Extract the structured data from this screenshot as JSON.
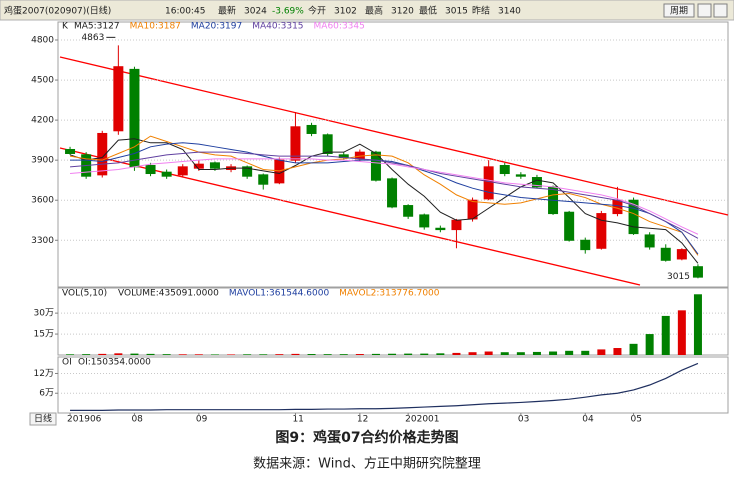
{
  "header": {
    "symbol": "鸡蛋2007(020907)(日线)",
    "time": "16:00:45",
    "fields": [
      {
        "label": "最新",
        "value": "3024"
      },
      {
        "label": "今开",
        "value": "3102"
      },
      {
        "label": "最高",
        "value": "3120"
      },
      {
        "label": "最低",
        "value": "3015"
      },
      {
        "label": "昨结",
        "value": "3140"
      }
    ],
    "change": "-3.69%",
    "button": "周期"
  },
  "chart_data": [
    {
      "type": "candlestick",
      "label": "K",
      "categories": [
        "201906",
        null,
        null,
        null,
        "08",
        null,
        null,
        null,
        "09",
        null,
        null,
        null,
        null,
        null,
        "11",
        null,
        null,
        null,
        "12",
        null,
        null,
        "202001",
        null,
        null,
        null,
        null,
        null,
        null,
        "03",
        null,
        null,
        null,
        "04",
        null,
        null,
        "05",
        null,
        null,
        null,
        null
      ],
      "open": [
        3980,
        3940,
        3790,
        4120,
        4580,
        3860,
        3810,
        3790,
        3840,
        3880,
        3830,
        3850,
        3790,
        3730,
        3900,
        4160,
        4090,
        3940,
        3910,
        3960,
        3760,
        3560,
        3490,
        3390,
        3380,
        3460,
        3610,
        3860,
        3790,
        3770,
        3700,
        3510,
        3300,
        3240,
        3500,
        3600,
        3340,
        3240,
        3160,
        3102
      ],
      "high": [
        4000,
        3960,
        4120,
        4760,
        4600,
        3880,
        3830,
        3870,
        3900,
        3890,
        3870,
        3860,
        3800,
        3920,
        4260,
        4180,
        4100,
        3960,
        3980,
        3970,
        3770,
        3570,
        3500,
        3410,
        3460,
        3620,
        3900,
        3880,
        3810,
        3790,
        3710,
        3520,
        3320,
        3520,
        3700,
        3620,
        3360,
        3270,
        3240,
        3120
      ],
      "low": [
        3940,
        3760,
        3770,
        4090,
        3820,
        3780,
        3760,
        3770,
        3820,
        3820,
        3810,
        3760,
        3680,
        3720,
        3880,
        4080,
        3930,
        3900,
        3890,
        3740,
        3540,
        3460,
        3380,
        3360,
        3240,
        3440,
        3600,
        3780,
        3760,
        3690,
        3490,
        3290,
        3200,
        3230,
        3480,
        3340,
        3230,
        3140,
        3150,
        3015
      ],
      "close": [
        3950,
        3780,
        4100,
        4600,
        3850,
        3800,
        3780,
        3850,
        3870,
        3840,
        3850,
        3780,
        3720,
        3900,
        4150,
        4100,
        3950,
        3920,
        3960,
        3750,
        3550,
        3480,
        3400,
        3380,
        3450,
        3600,
        3850,
        3800,
        3780,
        3700,
        3500,
        3300,
        3230,
        3500,
        3600,
        3350,
        3250,
        3150,
        3230,
        3024
      ],
      "up_color": "#e00000",
      "down_color": "#008000",
      "series": [
        {
          "name": "MA5:3127",
          "color": "#202020",
          "values": [
            3940,
            3900,
            3920,
            4050,
            4060,
            4030,
            4030,
            3980,
            3830,
            3830,
            3840,
            3840,
            3820,
            3800,
            3860,
            3930,
            3960,
            3960,
            4020,
            3950,
            3830,
            3720,
            3630,
            3510,
            3450,
            3460,
            3540,
            3620,
            3700,
            3750,
            3730,
            3620,
            3500,
            3450,
            3430,
            3400,
            3390,
            3380,
            3280,
            3127
          ]
        },
        {
          "name": "MA10:3187",
          "color": "#f08000",
          "values": [
            3930,
            3910,
            3900,
            3950,
            4000,
            4080,
            4040,
            4000,
            3960,
            3940,
            3930,
            3880,
            3830,
            3820,
            3850,
            3880,
            3900,
            3910,
            3930,
            3940,
            3930,
            3880,
            3790,
            3720,
            3640,
            3590,
            3580,
            3570,
            3580,
            3610,
            3640,
            3650,
            3620,
            3570,
            3540,
            3500,
            3440,
            3400,
            3360,
            3187
          ]
        },
        {
          "name": "MA20:3197",
          "color": "#2040a0",
          "values": [
            3900,
            3900,
            3890,
            3920,
            3950,
            4000,
            4020,
            4030,
            4020,
            4000,
            3980,
            3960,
            3930,
            3900,
            3880,
            3880,
            3880,
            3890,
            3900,
            3900,
            3890,
            3860,
            3820,
            3780,
            3730,
            3690,
            3660,
            3640,
            3620,
            3610,
            3600,
            3590,
            3580,
            3570,
            3560,
            3540,
            3500,
            3440,
            3360,
            3197
          ]
        },
        {
          "name": "MA40:3315",
          "color": "#6040a0",
          "values": [
            3850,
            3860,
            3870,
            3880,
            3900,
            3920,
            3940,
            3950,
            3960,
            3960,
            3960,
            3950,
            3940,
            3930,
            3930,
            3930,
            3930,
            3920,
            3910,
            3900,
            3880,
            3860,
            3830,
            3800,
            3780,
            3760,
            3740,
            3720,
            3700,
            3690,
            3680,
            3660,
            3640,
            3620,
            3600,
            3560,
            3500,
            3440,
            3380,
            3315
          ]
        },
        {
          "name": "MA60:3345",
          "color": "#f080f0",
          "values": [
            3800,
            3810,
            3820,
            3830,
            3850,
            3870,
            3880,
            3890,
            3900,
            3910,
            3910,
            3910,
            3910,
            3910,
            3910,
            3910,
            3900,
            3900,
            3890,
            3880,
            3870,
            3850,
            3830,
            3810,
            3790,
            3770,
            3750,
            3730,
            3720,
            3710,
            3700,
            3680,
            3660,
            3640,
            3610,
            3570,
            3520,
            3460,
            3400,
            3345
          ]
        }
      ],
      "annotations": [
        "4863",
        "3015"
      ],
      "ylim": [
        2950,
        4860
      ],
      "yticks": [
        3300,
        3600,
        3900,
        4200,
        4500,
        4800
      ],
      "grid": true
    },
    {
      "type": "bar",
      "title": "VOL(5,10)",
      "stats": [
        {
          "text": "VOLUME:435091.0000",
          "color": "#202020"
        },
        {
          "text": "MAVOL1:361544.6000",
          "color": "#2040a0"
        },
        {
          "text": "MAVOL2:313776.7000",
          "color": "#f08000"
        }
      ],
      "values": [
        0.5,
        0.6,
        0.8,
        1.2,
        1,
        0.8,
        0.6,
        0.5,
        0.5,
        0.4,
        0.4,
        0.5,
        0.5,
        0.6,
        0.8,
        0.7,
        0.6,
        0.6,
        0.7,
        0.8,
        0.9,
        1,
        1,
        1.2,
        1.5,
        2,
        2.5,
        2,
        2,
        2.2,
        2.5,
        3,
        3,
        4,
        5,
        8,
        15,
        28,
        32,
        43.5
      ],
      "ylim": [
        0,
        48
      ],
      "yticks": [
        {
          "value": 15,
          "label": "15万"
        },
        {
          "value": 30,
          "label": "30万"
        }
      ],
      "grid": true
    },
    {
      "type": "line",
      "title": "OI",
      "color": "#203060",
      "stats": [
        {
          "text": "OI:150354.0000",
          "color": "#202020"
        }
      ],
      "values": [
        0.8,
        0.8,
        0.8,
        0.9,
        0.9,
        0.9,
        1,
        1,
        1,
        1,
        1,
        1,
        1,
        1,
        1.1,
        1.1,
        1.2,
        1.2,
        1.3,
        1.3,
        1.4,
        1.6,
        1.8,
        2,
        2.2,
        2.5,
        2.8,
        3,
        3.2,
        3.5,
        3.8,
        4.2,
        4.8,
        5.5,
        6,
        7,
        8.5,
        10.5,
        13,
        15.0354
      ],
      "ylim": [
        0,
        17
      ],
      "yticks": [
        {
          "value": 6,
          "label": "6万"
        },
        {
          "value": 12,
          "label": "12万"
        }
      ],
      "grid": true
    }
  ],
  "period_label": "日线",
  "caption": {
    "title": "图9：鸡蛋07合约价格走势图",
    "source": "数据来源：Wind、方正中期研究院整理"
  }
}
